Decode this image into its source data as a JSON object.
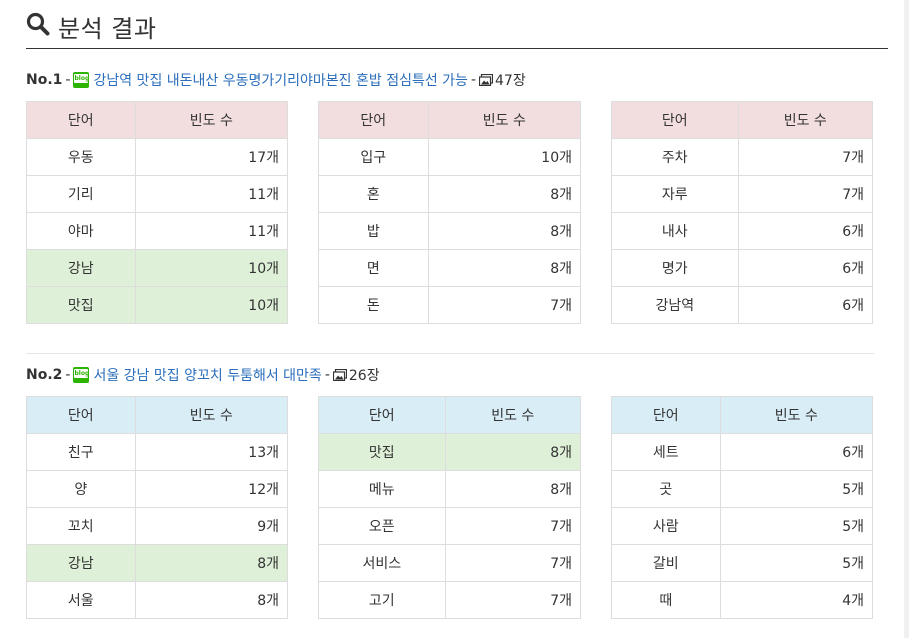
{
  "header": {
    "title": "분석 결과"
  },
  "posts": [
    {
      "no": "No.1",
      "title": "강남역 맛집 내돈내산 우동명가기리야마본진 혼밥 점심특선 가능",
      "count": "47장",
      "tables": [
        {
          "h_word": "단어",
          "h_freq": "빈도 수",
          "rows": [
            {
              "w": "우동",
              "c": "17개"
            },
            {
              "w": "기리",
              "c": "11개"
            },
            {
              "w": "야마",
              "c": "11개"
            },
            {
              "w": "강남",
              "c": "10개"
            },
            {
              "w": "맛집",
              "c": "10개"
            }
          ]
        },
        {
          "h_word": "단어",
          "h_freq": "빈도 수",
          "rows": [
            {
              "w": "입구",
              "c": "10개"
            },
            {
              "w": "혼",
              "c": "8개"
            },
            {
              "w": "밥",
              "c": "8개"
            },
            {
              "w": "면",
              "c": "8개"
            },
            {
              "w": "돈",
              "c": "7개"
            }
          ]
        },
        {
          "h_word": "단어",
          "h_freq": "빈도 수",
          "rows": [
            {
              "w": "주차",
              "c": "7개"
            },
            {
              "w": "자루",
              "c": "7개"
            },
            {
              "w": "내사",
              "c": "6개"
            },
            {
              "w": "명가",
              "c": "6개"
            },
            {
              "w": "강남역",
              "c": "6개"
            }
          ]
        }
      ]
    },
    {
      "no": "No.2",
      "title": "서울 강남 맛집 양꼬치 두툼해서 대만족",
      "count": "26장",
      "tables": [
        {
          "h_word": "단어",
          "h_freq": "빈도 수",
          "rows": [
            {
              "w": "친구",
              "c": "13개"
            },
            {
              "w": "양",
              "c": "12개"
            },
            {
              "w": "꼬치",
              "c": "9개"
            },
            {
              "w": "강남",
              "c": "8개"
            },
            {
              "w": "서울",
              "c": "8개"
            }
          ]
        },
        {
          "h_word": "단어",
          "h_freq": "빈도 수",
          "rows": [
            {
              "w": "맛집",
              "c": "8개"
            },
            {
              "w": "메뉴",
              "c": "8개"
            },
            {
              "w": "오픈",
              "c": "7개"
            },
            {
              "w": "서비스",
              "c": "7개"
            },
            {
              "w": "고기",
              "c": "7개"
            }
          ]
        },
        {
          "h_word": "단어",
          "h_freq": "빈도 수",
          "rows": [
            {
              "w": "세트",
              "c": "6개"
            },
            {
              "w": "곳",
              "c": "5개"
            },
            {
              "w": "사람",
              "c": "5개"
            },
            {
              "w": "갈비",
              "c": "5개"
            },
            {
              "w": "때",
              "c": "4개"
            }
          ]
        }
      ]
    }
  ],
  "colors": {
    "pink_header": "#f2dede",
    "blue_header": "#d9edf7",
    "highlight": "#dff0d8",
    "link": "#2a6ebb"
  },
  "icons": {
    "header": "search-icon",
    "blog": "blog-icon",
    "images": "image-icon"
  }
}
